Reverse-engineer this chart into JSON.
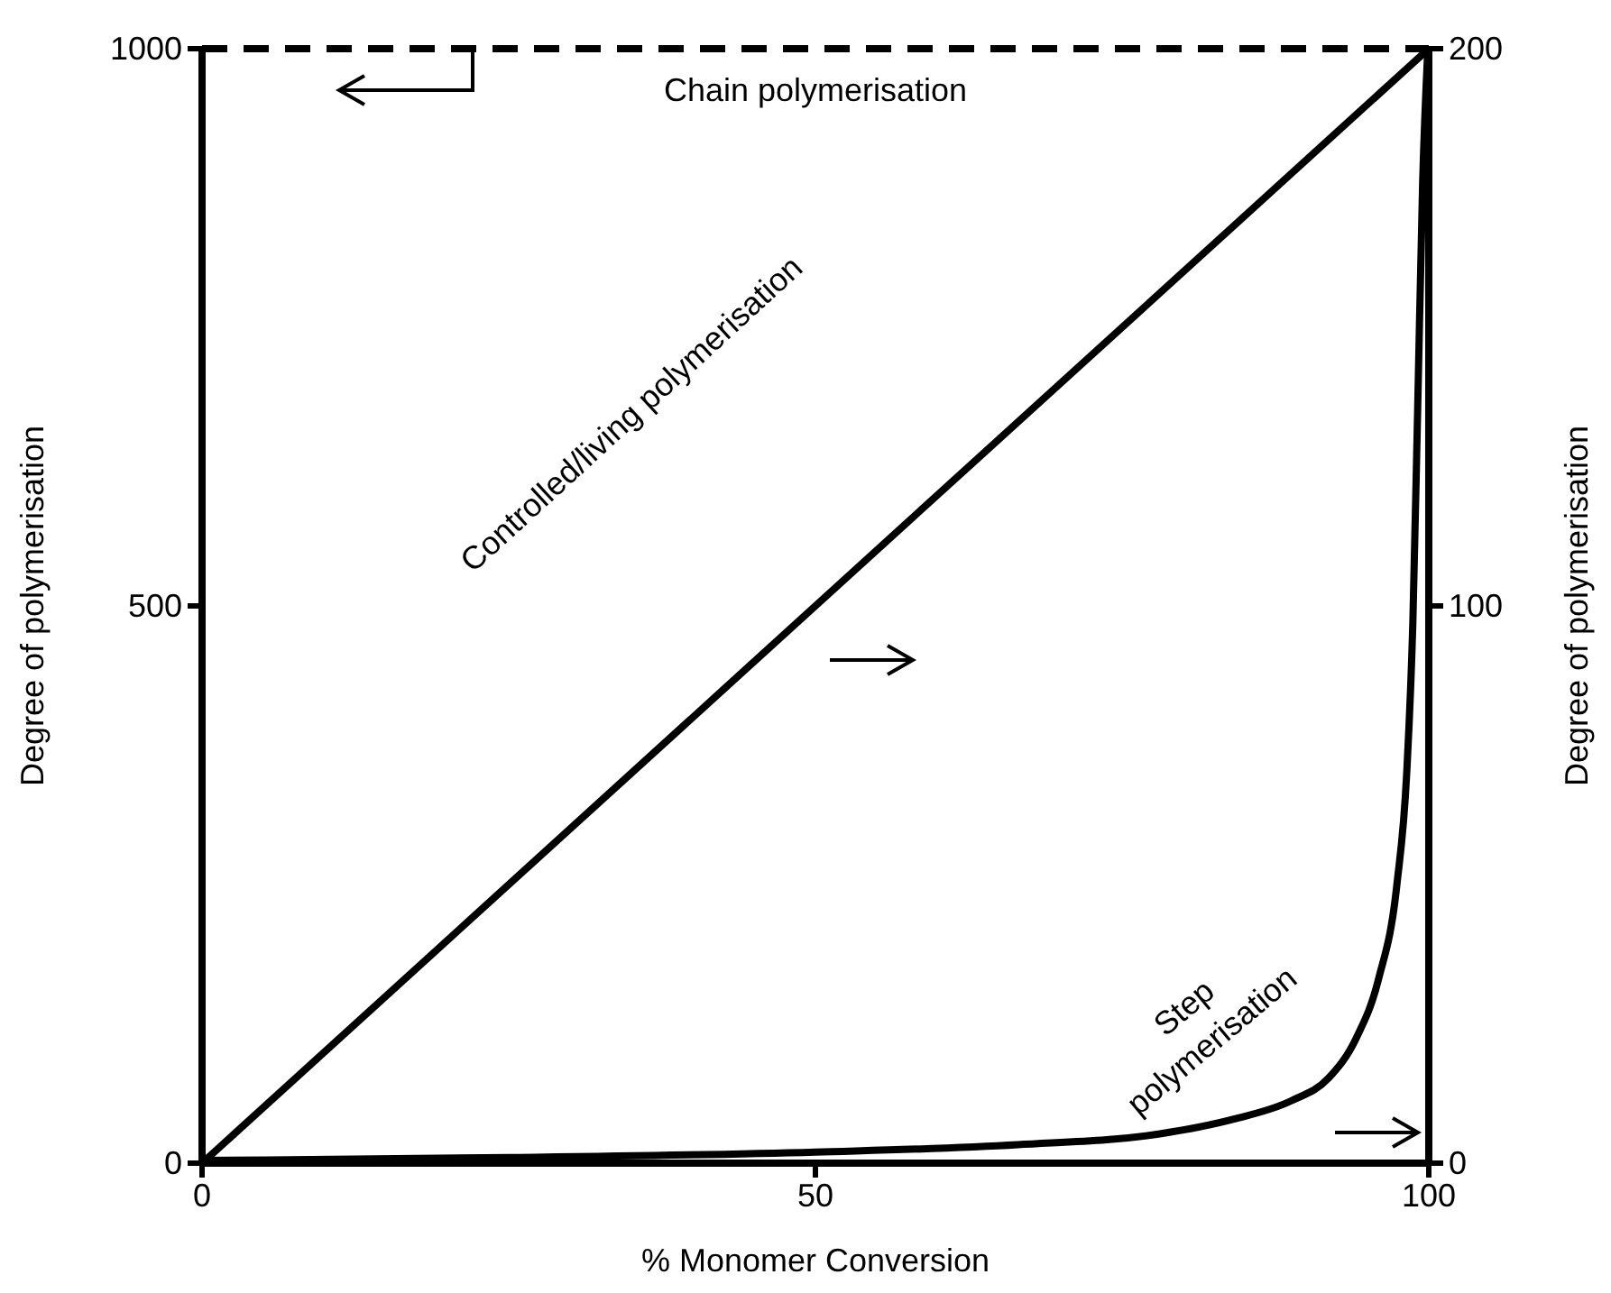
{
  "chart_data": {
    "type": "line",
    "xlabel": "% Monomer Conversion",
    "ylabel": "Degree of polymerisation",
    "y2label": "Degree of polymerisation",
    "xlim": [
      0,
      100
    ],
    "xticks": [
      0,
      50,
      100
    ],
    "ylim": [
      0,
      1000
    ],
    "yticks": [
      0,
      500,
      1000
    ],
    "y2lim": [
      0,
      200
    ],
    "y2ticks": [
      0,
      100,
      200
    ],
    "grid": false,
    "marker": "none",
    "series": [
      {
        "name": "Chain polymerisation",
        "color": "#000000",
        "line_style": "dashed",
        "axis": "y",
        "x": [
          0,
          100
        ],
        "values": [
          1000,
          1000
        ]
      },
      {
        "name": "Controlled/living polymerisation",
        "color": "#000000",
        "line_style": "solid",
        "axis": "y2",
        "x": [
          0,
          100
        ],
        "values": [
          0,
          200
        ]
      },
      {
        "name": "Step polymerisation",
        "color": "#000000",
        "line_style": "solid",
        "axis": "y2",
        "x": [
          0,
          25,
          50,
          66.5,
          78.2,
          84.1,
          88.8,
          91.8,
          94.1,
          95.9,
          97.4,
          98.2,
          98.7,
          99.1,
          99.5,
          99.9
        ],
        "values": [
          0.5,
          1,
          2,
          3.3,
          5.3,
          7.9,
          11.2,
          15.2,
          22.5,
          33,
          50,
          70,
          97,
          136,
          176,
          199
        ]
      }
    ]
  }
}
